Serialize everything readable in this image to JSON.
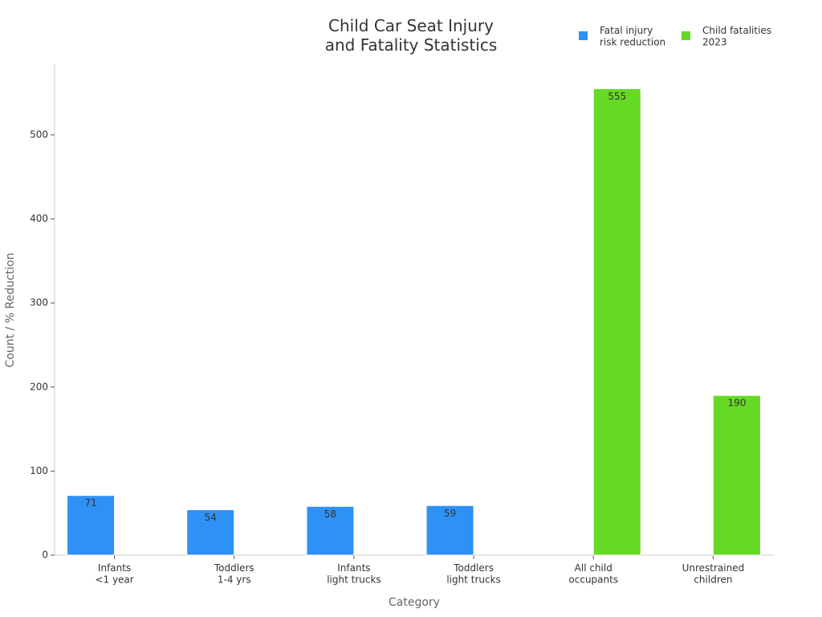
{
  "chart_data": {
    "type": "bar",
    "title": "Child Car Seat Injury\nand Fatality Statistics",
    "x_label": "Category",
    "y_label": "Count / % Reduction",
    "categories": [
      "Infants\n<1 year",
      "Toddlers\n1-4 yrs",
      "Infants\nlight trucks",
      "Toddlers\nlight trucks",
      "All child\noccupants",
      "Unrestrained\nchildren"
    ],
    "series": [
      {
        "name": "Fatal injury\nrisk reduction",
        "color": "#2e91f5",
        "values": [
          71,
          54,
          58,
          59,
          null,
          null
        ]
      },
      {
        "name": "Child fatalities\n2023",
        "color": "#66d926",
        "values": [
          null,
          null,
          null,
          null,
          555,
          190
        ]
      }
    ],
    "ylim": [
      0,
      584
    ],
    "yticks": [
      0,
      100,
      200,
      300,
      400,
      500
    ],
    "grid": false,
    "legend": "top-right"
  }
}
